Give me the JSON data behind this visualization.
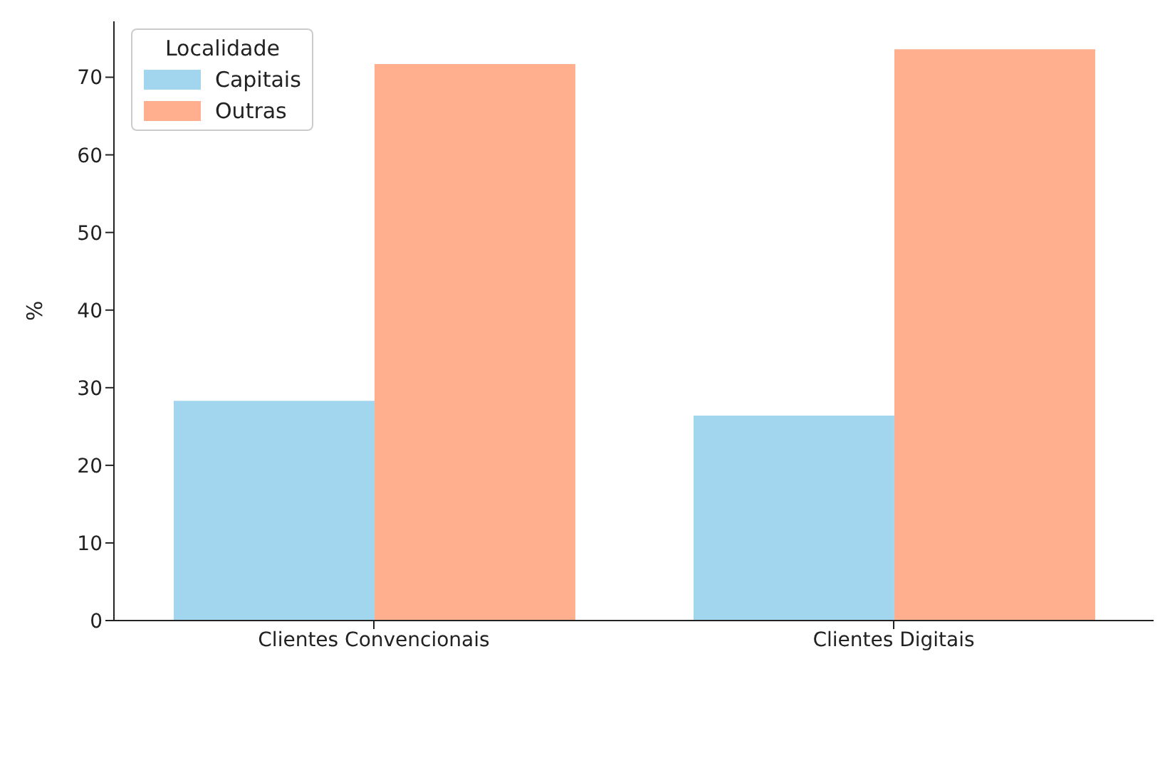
{
  "chart_data": {
    "type": "bar",
    "ylabel": "%",
    "legend_title": "Localidade",
    "legend": "top left",
    "grid": false,
    "categories": [
      "Clientes Convencionais",
      "Clientes Digitais"
    ],
    "series": [
      {
        "name": "Capitais",
        "color": "#a1d6ee",
        "values": [
          28.3,
          26.4
        ]
      },
      {
        "name": "Outras",
        "color": "#ffae8e",
        "values": [
          71.7,
          73.6
        ]
      }
    ],
    "ylim": [
      0,
      77.2
    ],
    "yticks": [
      0,
      10,
      20,
      30,
      40,
      50,
      60,
      70
    ]
  }
}
